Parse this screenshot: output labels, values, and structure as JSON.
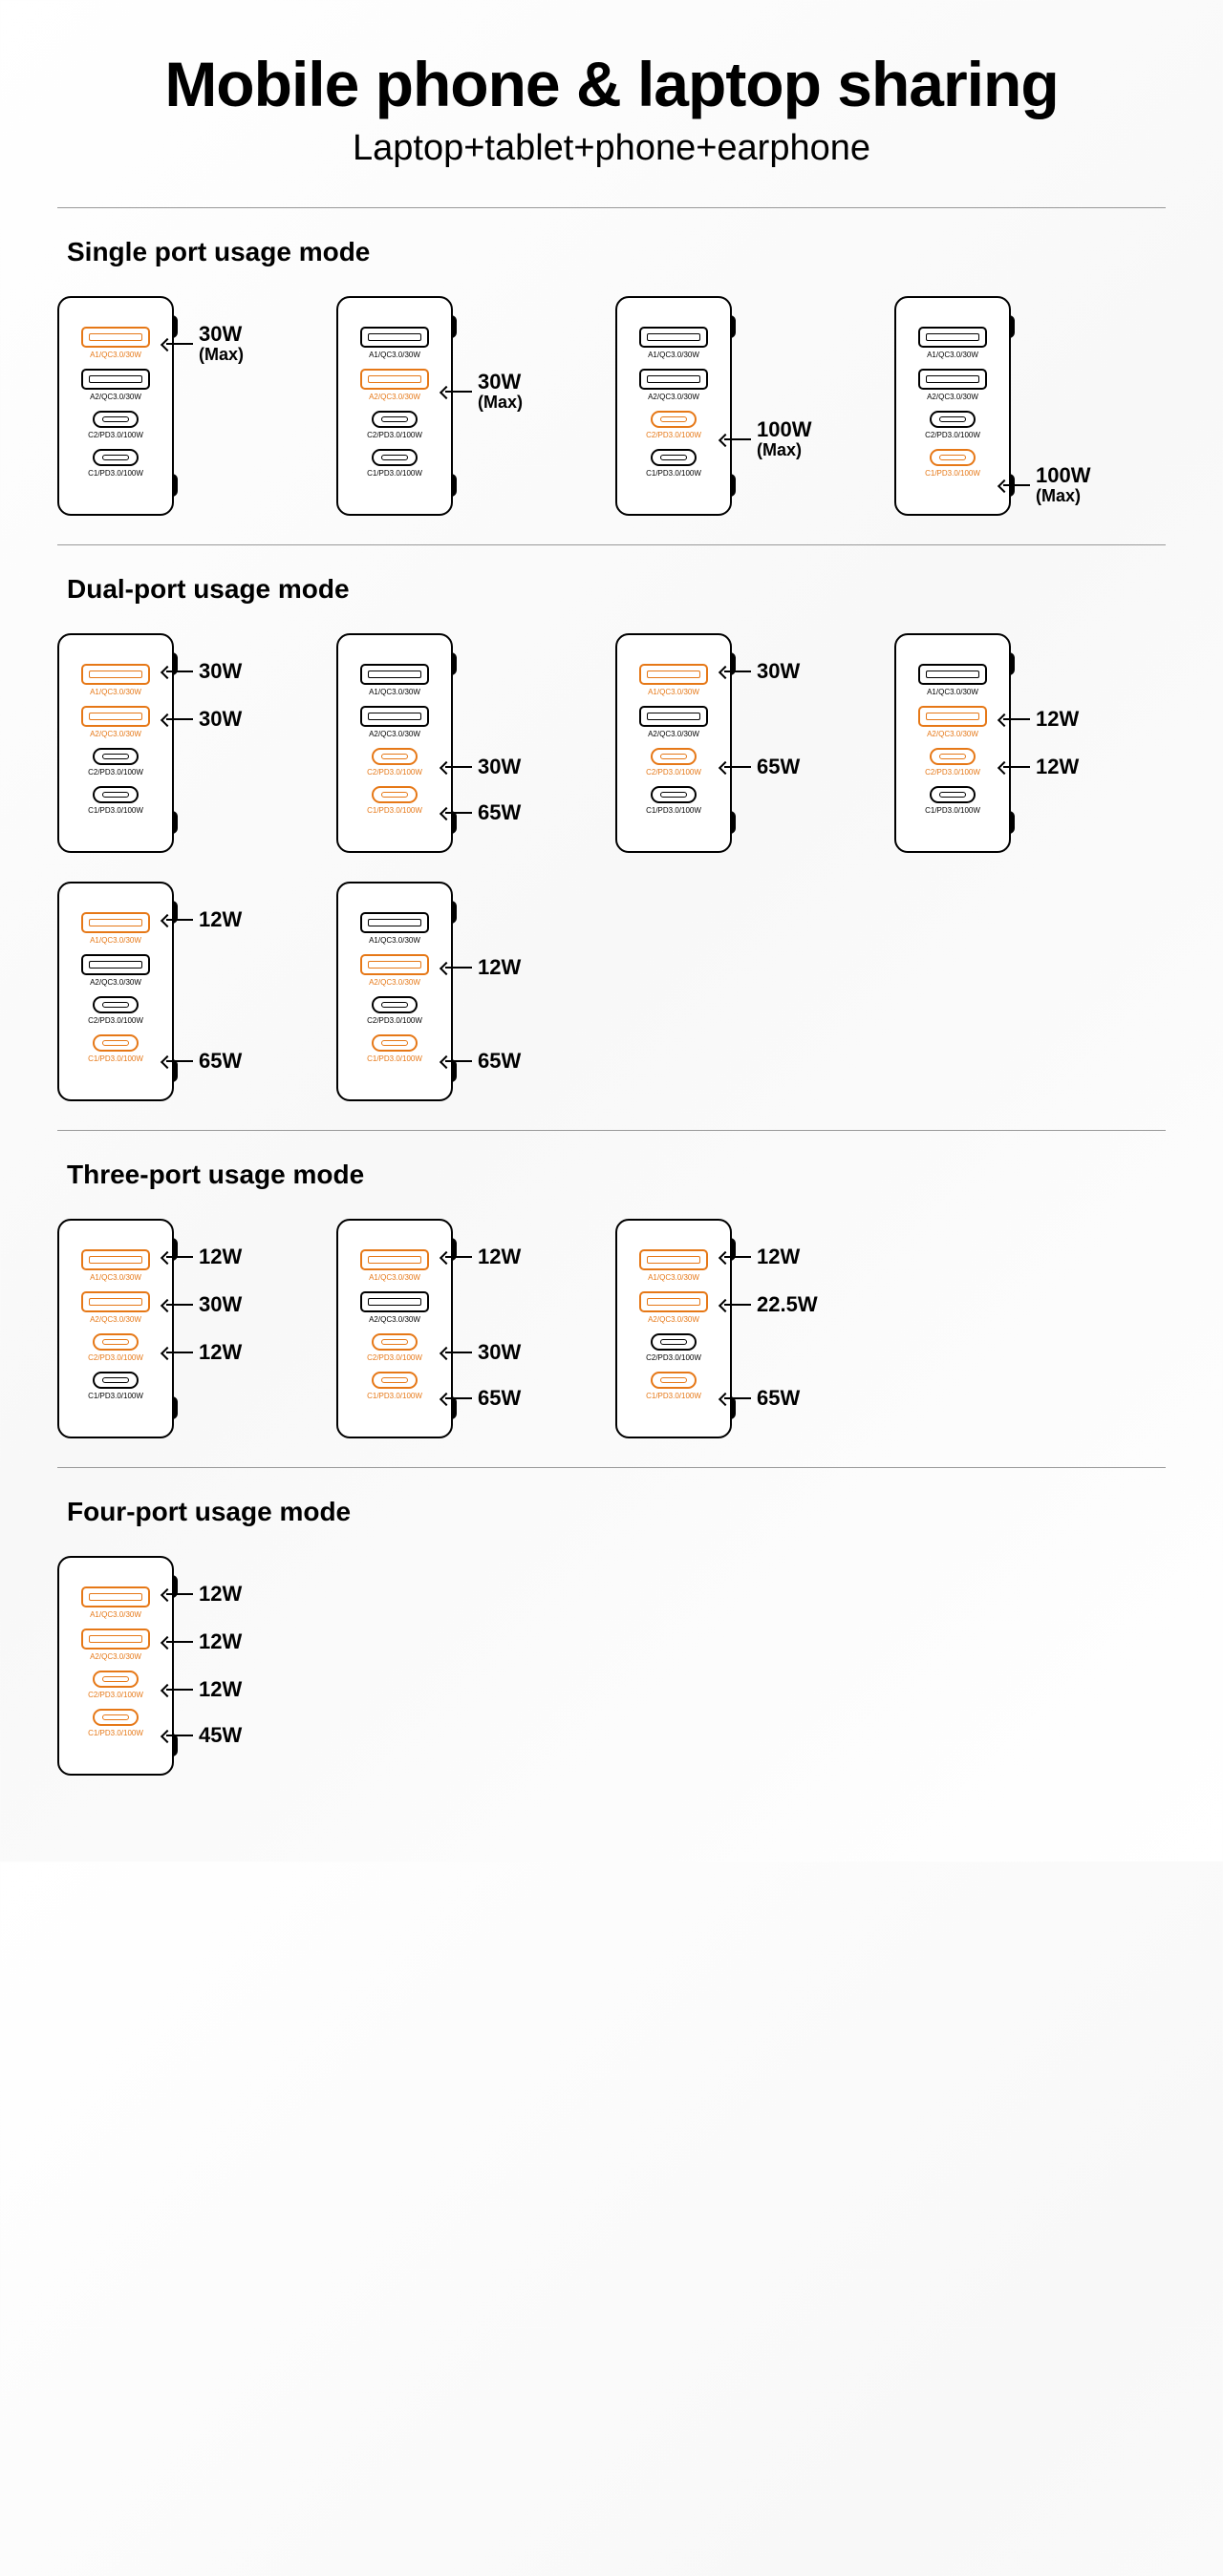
{
  "title": "Mobile phone & laptop sharing",
  "subtitle": "Laptop+tablet+phone+earphone",
  "colors": {
    "active": "#e67817",
    "inactive": "#000000"
  },
  "port_defs": [
    {
      "id": "A1",
      "type": "usb-a",
      "label": "A1/QC3.0/30W"
    },
    {
      "id": "A2",
      "type": "usb-a",
      "label": "A2/QC3.0/30W"
    },
    {
      "id": "C2",
      "type": "usb-c",
      "label": "C2/PD3.0/100W"
    },
    {
      "id": "C1",
      "type": "usb-c",
      "label": "C1/PD3.0/100W"
    }
  ],
  "sections": [
    {
      "title": "Single port usage mode",
      "rows": [
        [
          {
            "active": [
              "A1"
            ],
            "outputs": [
              {
                "port": "A1",
                "text": "30W",
                "sub": "(Max)"
              }
            ]
          },
          {
            "active": [
              "A2"
            ],
            "outputs": [
              {
                "port": "A2",
                "text": "30W",
                "sub": "(Max)"
              }
            ]
          },
          {
            "active": [
              "C2"
            ],
            "outputs": [
              {
                "port": "C2",
                "text": "100W",
                "sub": "(Max)"
              }
            ]
          },
          {
            "active": [
              "C1"
            ],
            "outputs": [
              {
                "port": "C1",
                "text": "100W",
                "sub": "(Max)"
              }
            ]
          }
        ]
      ]
    },
    {
      "title": "Dual-port usage mode",
      "rows": [
        [
          {
            "active": [
              "A1",
              "A2"
            ],
            "outputs": [
              {
                "port": "A1",
                "text": "30W"
              },
              {
                "port": "A2",
                "text": "30W"
              }
            ]
          },
          {
            "active": [
              "C2",
              "C1"
            ],
            "outputs": [
              {
                "port": "C2",
                "text": "30W"
              },
              {
                "port": "C1",
                "text": "65W"
              }
            ]
          },
          {
            "active": [
              "A1",
              "C2"
            ],
            "outputs": [
              {
                "port": "A1",
                "text": "30W"
              },
              {
                "port": "C2",
                "text": "65W"
              }
            ]
          },
          {
            "active": [
              "A2",
              "C2"
            ],
            "outputs": [
              {
                "port": "A2",
                "text": "12W"
              },
              {
                "port": "C2",
                "text": "12W"
              }
            ]
          }
        ],
        [
          {
            "active": [
              "A1",
              "C1"
            ],
            "outputs": [
              {
                "port": "A1",
                "text": "12W"
              },
              {
                "port": "C1",
                "text": "65W"
              }
            ]
          },
          {
            "active": [
              "A2",
              "C1"
            ],
            "outputs": [
              {
                "port": "A2",
                "text": "12W"
              },
              {
                "port": "C1",
                "text": "65W"
              }
            ]
          }
        ]
      ]
    },
    {
      "title": "Three-port usage mode",
      "rows": [
        [
          {
            "active": [
              "A1",
              "A2",
              "C2"
            ],
            "outputs": [
              {
                "port": "A1",
                "text": "12W"
              },
              {
                "port": "A2",
                "text": "30W"
              },
              {
                "port": "C2",
                "text": "12W"
              }
            ]
          },
          {
            "active": [
              "A1",
              "C2",
              "C1"
            ],
            "outputs": [
              {
                "port": "A1",
                "text": "12W"
              },
              {
                "port": "C2",
                "text": "30W"
              },
              {
                "port": "C1",
                "text": "65W"
              }
            ]
          },
          {
            "active": [
              "A1",
              "A2",
              "C1"
            ],
            "outputs": [
              {
                "port": "A1",
                "text": "12W"
              },
              {
                "port": "A2",
                "text": "22.5W"
              },
              {
                "port": "C1",
                "text": "65W"
              }
            ]
          }
        ]
      ]
    },
    {
      "title": "Four-port usage mode",
      "rows": [
        [
          {
            "active": [
              "A1",
              "A2",
              "C2",
              "C1"
            ],
            "outputs": [
              {
                "port": "A1",
                "text": "12W"
              },
              {
                "port": "A2",
                "text": "12W"
              },
              {
                "port": "C2",
                "text": "12W"
              },
              {
                "port": "C1",
                "text": "45W"
              }
            ]
          }
        ]
      ]
    }
  ]
}
